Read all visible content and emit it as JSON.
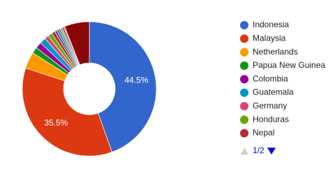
{
  "chart_data": {
    "type": "pie",
    "donut": true,
    "categories": [
      "Indonesia",
      "Malaysia",
      "Netherlands",
      "Papua New Guinea",
      "Colombia",
      "Guatemala",
      "Germany",
      "Honduras",
      "Nepal",
      null,
      null,
      null,
      null,
      null,
      null,
      null
    ],
    "values": [
      44.5,
      35.5,
      4.0,
      1.5,
      1.5,
      1.5,
      1.0,
      1.0,
      0.8,
      0.6,
      0.5,
      0.5,
      0.4,
      0.4,
      0.3,
      6.0
    ],
    "value_labels": [
      "44.5%",
      "35.5%",
      null,
      null,
      null,
      null,
      null,
      null,
      null,
      null,
      null,
      null,
      null,
      null,
      null,
      null
    ],
    "colors": [
      "#3366cc",
      "#dc3912",
      "#ff9900",
      "#109618",
      "#990099",
      "#0099c6",
      "#dd4477",
      "#66aa00",
      "#b82e2e",
      "#316395",
      "#994499",
      "#22aa99",
      "#aaaa11",
      "#6633cc",
      "#e67300",
      "#8b0707"
    ],
    "legend_position": "right",
    "legend_page": "1/2"
  }
}
